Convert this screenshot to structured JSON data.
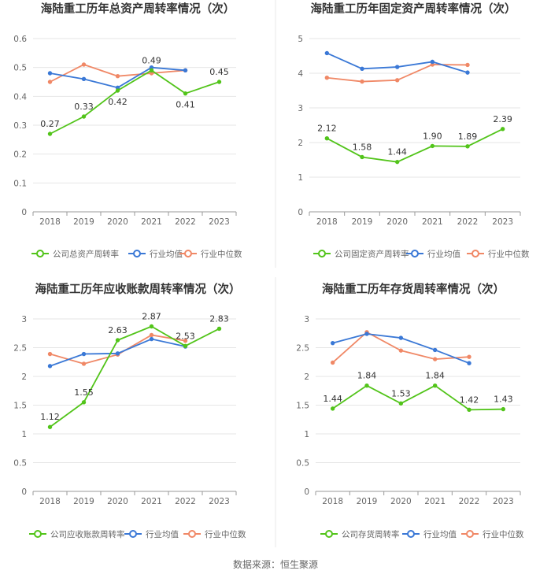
{
  "colors": {
    "company": "#52c41a",
    "industry_avg": "#3a78d6",
    "industry_median": "#f08866",
    "grid": "#e6e6e6",
    "axis": "#999999",
    "text": "#666666",
    "title": "#333333",
    "divider": "#e8e8e8"
  },
  "source": "数据来源：恒生聚源",
  "chart_data": [
    {
      "type": "line",
      "title": "海陆重工历年总资产周转率情况（次）",
      "categories": [
        "2018",
        "2019",
        "2020",
        "2021",
        "2022",
        "2023"
      ],
      "ylim": [
        0,
        0.6
      ],
      "yticks": [
        "0",
        "0.1",
        "0.2",
        "0.3",
        "0.4",
        "0.5",
        "0.6"
      ],
      "series": [
        {
          "key": "company",
          "name": "公司总资产周转率",
          "values": [
            0.27,
            0.33,
            0.42,
            0.49,
            0.41,
            0.45
          ],
          "labels": [
            "0.27",
            "0.33",
            "0.42",
            "0.49",
            "0.41",
            "0.45"
          ]
        },
        {
          "key": "industry_avg",
          "name": "行业均值",
          "values": [
            0.48,
            0.46,
            0.43,
            0.5,
            0.49,
            null
          ]
        },
        {
          "key": "industry_median",
          "name": "行业中位数",
          "values": [
            0.45,
            0.51,
            0.47,
            0.48,
            0.49,
            null
          ]
        }
      ]
    },
    {
      "type": "line",
      "title": "海陆重工历年固定资产周转率情况（次）",
      "categories": [
        "2018",
        "2019",
        "2020",
        "2021",
        "2022",
        "2023"
      ],
      "ylim": [
        0,
        5
      ],
      "yticks": [
        "0",
        "1",
        "2",
        "3",
        "4",
        "5"
      ],
      "series": [
        {
          "key": "company",
          "name": "公司固定资产周转率",
          "values": [
            2.12,
            1.58,
            1.44,
            1.9,
            1.89,
            2.39
          ],
          "labels": [
            "2.12",
            "1.58",
            "1.44",
            "1.90",
            "1.89",
            "2.39"
          ]
        },
        {
          "key": "industry_avg",
          "name": "行业均值",
          "values": [
            4.58,
            4.13,
            4.18,
            4.33,
            4.02,
            null
          ]
        },
        {
          "key": "industry_median",
          "name": "行业中位数",
          "values": [
            3.87,
            3.76,
            3.8,
            4.25,
            4.24,
            null
          ]
        }
      ]
    },
    {
      "type": "line",
      "title": "海陆重工历年应收账款周转率情况（次）",
      "categories": [
        "2018",
        "2019",
        "2020",
        "2021",
        "2022",
        "2023"
      ],
      "ylim": [
        0,
        3
      ],
      "yticks": [
        "0",
        "0.5",
        "1",
        "1.5",
        "2",
        "2.5",
        "3"
      ],
      "series": [
        {
          "key": "company",
          "name": "公司应收账款周转率",
          "values": [
            1.12,
            1.55,
            2.63,
            2.87,
            2.53,
            2.83
          ],
          "labels": [
            "1.12",
            "1.55",
            "2.63",
            "2.87",
            "2.53",
            "2.83"
          ]
        },
        {
          "key": "industry_avg",
          "name": "行业均值",
          "values": [
            2.18,
            2.39,
            2.4,
            2.65,
            2.52,
            null
          ]
        },
        {
          "key": "industry_median",
          "name": "行业中位数",
          "values": [
            2.39,
            2.22,
            2.38,
            2.72,
            2.62,
            null
          ]
        }
      ]
    },
    {
      "type": "line",
      "title": "海陆重工历年存货周转率情况（次）",
      "categories": [
        "2018",
        "2019",
        "2020",
        "2021",
        "2022",
        "2023"
      ],
      "ylim": [
        0,
        3
      ],
      "yticks": [
        "0",
        "0.5",
        "1",
        "1.5",
        "2",
        "2.5",
        "3"
      ],
      "series": [
        {
          "key": "company",
          "name": "公司存货周转率",
          "values": [
            1.44,
            1.84,
            1.53,
            1.84,
            1.42,
            1.43
          ],
          "labels": [
            "1.44",
            "1.84",
            "1.53",
            "1.84",
            "1.42",
            "1.43"
          ]
        },
        {
          "key": "industry_avg",
          "name": "行业均值",
          "values": [
            2.58,
            2.74,
            2.67,
            2.46,
            2.23,
            null
          ]
        },
        {
          "key": "industry_median",
          "name": "行业中位数",
          "values": [
            2.24,
            2.77,
            2.45,
            2.3,
            2.34,
            null
          ]
        }
      ]
    }
  ]
}
